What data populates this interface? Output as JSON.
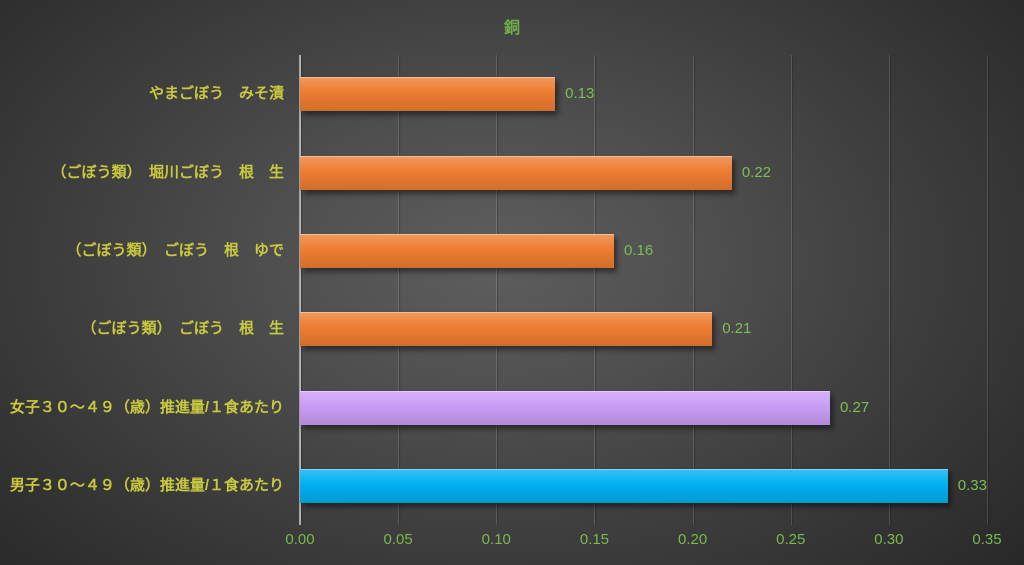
{
  "chart_data": {
    "type": "bar",
    "orientation": "horizontal",
    "title": "銅",
    "categories": [
      "やまごぼう　みそ漬",
      "（ごぼう類）　堀川ごぼう　根　生",
      "（ごぼう類）　ごぼう　根　ゆで",
      "（ごぼう類）　ごぼう　根　生",
      "女子３０～４９（歳）推進量/１食あたり",
      "男子３０～４９（歳）推進量/１食あたり"
    ],
    "values": [
      0.13,
      0.22,
      0.16,
      0.21,
      0.27,
      0.33
    ],
    "data_labels": [
      "0.13",
      "0.22",
      "0.16",
      "0.21",
      "0.27",
      "0.33"
    ],
    "bar_colors": [
      "#ED7D31",
      "#ED7D31",
      "#ED7D31",
      "#ED7D31",
      "#C99CF5",
      "#00B0F0"
    ],
    "xlabel": "",
    "ylabel": "",
    "xlim": [
      0,
      0.35
    ],
    "x_ticks": [
      "0.00",
      "0.05",
      "0.10",
      "0.15",
      "0.20",
      "0.25",
      "0.30",
      "0.35"
    ],
    "grid": "vertical",
    "legend": "none",
    "colors": {
      "title_text": "#6fae49",
      "category_text": "#c9c93e",
      "tick_text": "#79b84e",
      "data_label_text": "#7cbe52",
      "axis_line": "#a8a8a8",
      "background_center": "#5e5e5e",
      "background_edge": "#232323"
    }
  }
}
